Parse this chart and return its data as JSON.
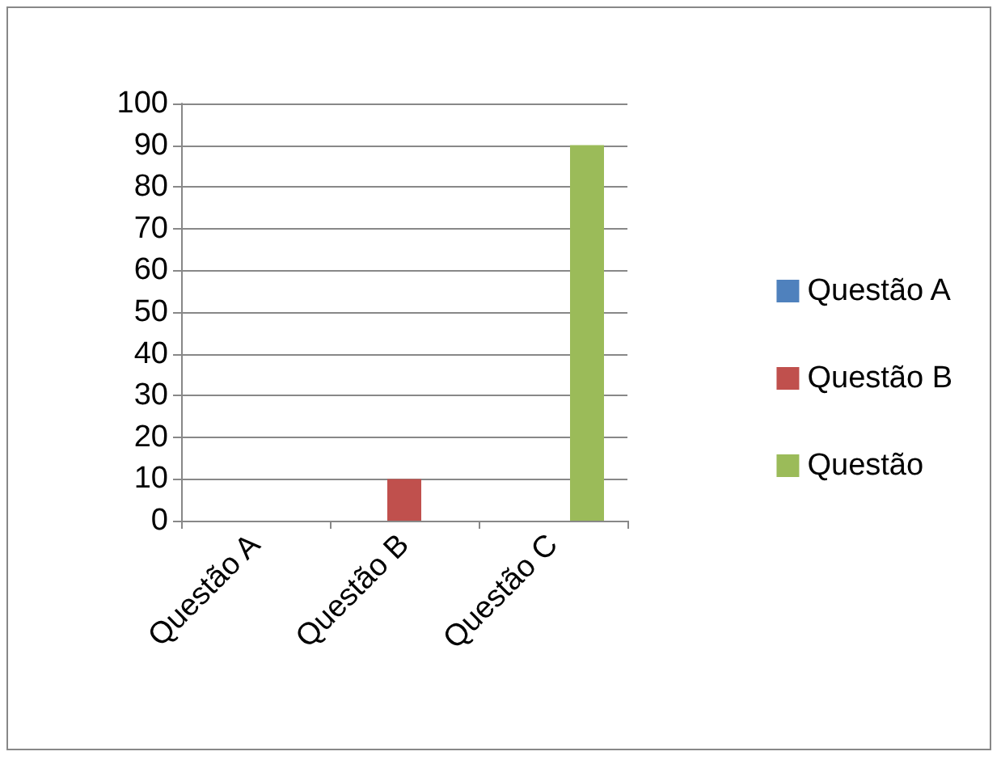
{
  "chart_data": {
    "type": "bar",
    "categories": [
      "Questão A",
      "Questão B",
      "Questão C"
    ],
    "series": [
      {
        "name": "Questão A",
        "color": "#4f81bd",
        "values": [
          0,
          0,
          0
        ]
      },
      {
        "name": "Questão B",
        "color": "#c0504d",
        "values": [
          0,
          10,
          0
        ]
      },
      {
        "name": "Questão",
        "color": "#9bbb59",
        "values": [
          0,
          0,
          90
        ]
      }
    ],
    "ylim": [
      0,
      100
    ],
    "yticks": [
      0,
      10,
      20,
      30,
      40,
      50,
      60,
      70,
      80,
      90,
      100
    ],
    "grid": "y",
    "legend": "right"
  }
}
